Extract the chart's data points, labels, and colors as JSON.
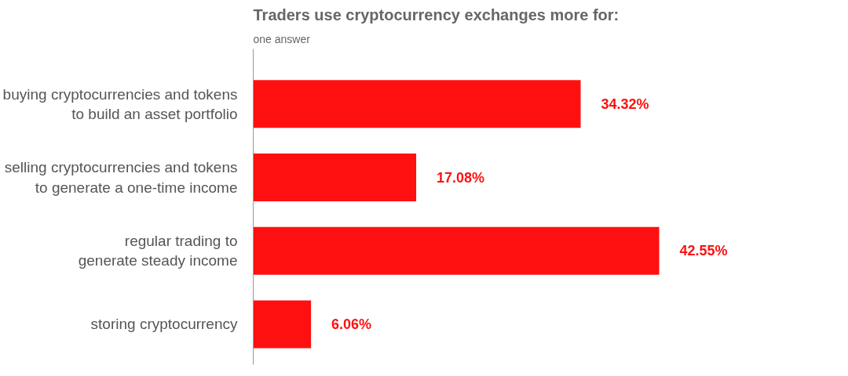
{
  "chart_data": {
    "type": "bar",
    "orientation": "horizontal",
    "title": "Traders use cryptocurrency exchanges more for:",
    "subtitle": "one answer",
    "categories": [
      "buying cryptocurrencies and tokens\nto build an asset portfolio",
      "selling cryptocurrencies and tokens\nto generate a one-time income",
      "regular trading to\ngenerate steady income",
      "storing cryptocurrency"
    ],
    "values": [
      34.32,
      17.08,
      42.55,
      6.06
    ],
    "value_labels": [
      "34.32%",
      "17.08%",
      "42.55%",
      "6.06%"
    ],
    "color": "#ff1010",
    "grid": false
  }
}
